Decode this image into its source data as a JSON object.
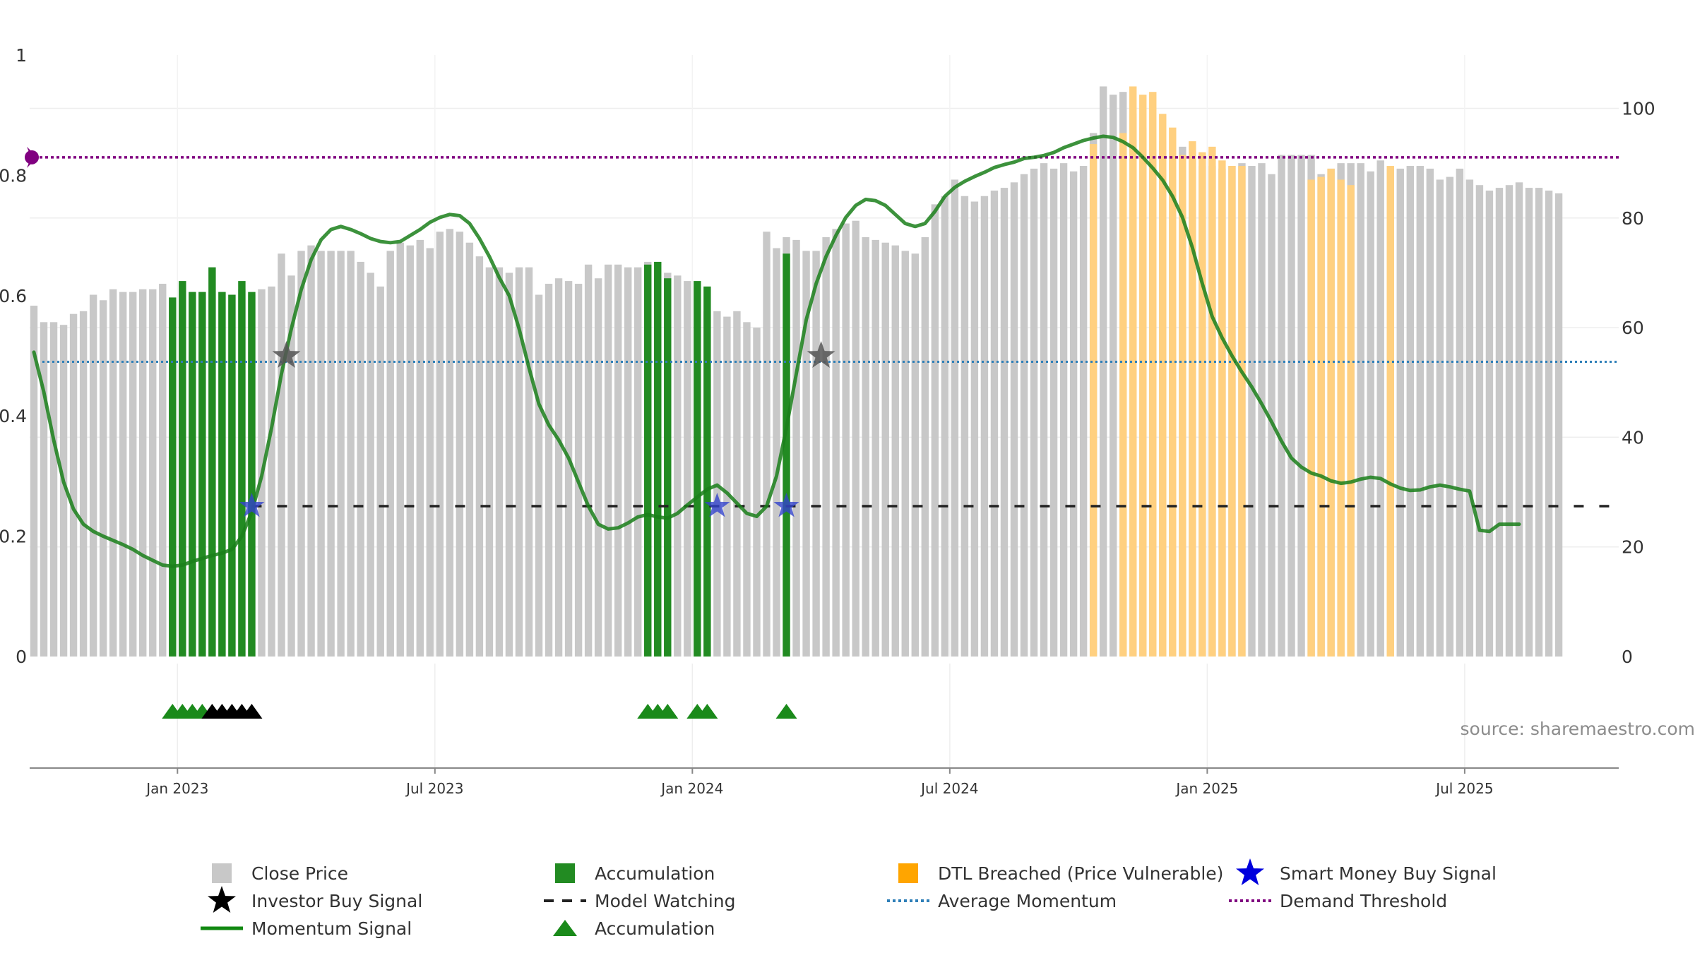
{
  "colors": {
    "close": "#c8c8c8",
    "accumulation": "#228b22",
    "dtl": "#ffd080",
    "dtl_legend": "#ffa500",
    "momentum": "#1a7f1a",
    "investor_star": "#555555",
    "smart_star": "#3344cc",
    "avg_momentum": "#2e7fb8",
    "demand": "#800080",
    "watching": "#222222",
    "tri_green": "#1a8a1a",
    "tri_black": "#000000",
    "grid": "#eeeeee"
  },
  "source": "source: sharemaestro.com",
  "chart_data": {
    "type": "bar",
    "x_ticks": [
      "Jan 2023",
      "Jul 2023",
      "Jan 2024",
      "Jul 2024",
      "Jan 2025",
      "Jul 2025"
    ],
    "x_tick_bar_index": [
      14.5,
      40.5,
      66.5,
      92.5,
      118.5,
      144.5
    ],
    "left_axis": {
      "range": [
        0,
        1
      ],
      "ticks": [
        0,
        0.2,
        0.4,
        0.6,
        0.8,
        1
      ],
      "tick_labels": [
        "0",
        "0.2",
        "0.4",
        "0.6",
        "0.8",
        "1"
      ]
    },
    "right_axis": {
      "range": [
        0,
        110
      ],
      "ticks": [
        0,
        20,
        40,
        60,
        80,
        100
      ],
      "tick_labels": [
        "0",
        "20",
        "40",
        "60",
        "80",
        "100"
      ]
    },
    "series": [
      {
        "name": "Close Price",
        "axis": "right",
        "values": [
          64,
          61,
          61,
          60.5,
          62.5,
          63,
          66,
          65,
          67,
          66.5,
          66.5,
          67,
          67,
          68,
          65,
          68,
          66.5,
          66.5,
          71,
          66.5,
          66,
          67,
          66,
          67,
          67.5,
          73.5,
          69.5,
          74,
          75,
          74,
          74,
          74,
          74,
          72,
          70,
          67.5,
          74,
          75.5,
          75,
          76,
          74.5,
          77.5,
          78,
          77.5,
          75.5,
          73,
          71,
          71,
          70,
          71,
          71,
          66,
          68,
          69,
          68.5,
          68,
          71.5,
          69,
          71.5,
          71.5,
          71,
          71,
          72,
          69,
          70,
          69.5,
          68.5,
          67.5,
          63,
          63,
          62,
          63,
          61,
          60,
          77.5,
          74.5,
          76.5,
          76,
          74,
          74,
          76.5,
          78,
          79,
          79.5,
          76.5,
          76,
          75.5,
          75,
          74,
          73.5,
          76.5,
          82.5,
          84,
          87,
          84,
          83,
          84,
          85,
          85.5,
          86.5,
          88,
          89,
          90,
          89,
          90,
          88.5,
          89.5,
          95.5,
          104,
          102.5,
          103,
          99,
          96.5,
          91.5,
          94,
          92,
          93,
          90.5,
          89.5,
          89.5,
          89,
          89.5,
          90,
          89.5,
          90,
          88,
          91.5,
          91.5,
          91.5,
          91.5,
          88,
          89,
          90,
          90,
          90,
          88.5,
          90.5,
          89,
          89,
          89.5,
          89.5,
          89,
          87,
          87.5,
          89,
          87,
          86,
          85,
          85.5,
          86,
          86.5,
          85.5,
          85.5,
          85,
          84.5
        ]
      },
      {
        "name": "Accumulation",
        "axis": "right",
        "bar_index": [
          14,
          15,
          16,
          17,
          18,
          19,
          20,
          21,
          22,
          62,
          63,
          64,
          67,
          68,
          76
        ],
        "values": [
          65.5,
          68.5,
          66.5,
          66.5,
          71,
          66.5,
          66,
          68.5,
          66.5,
          71.5,
          72,
          69,
          68.5,
          67.5,
          73.5
        ]
      },
      {
        "name": "DTL Breached (Price Vulnerable)",
        "axis": "right",
        "bar_index": [
          107,
          110,
          111,
          112,
          113,
          114,
          115,
          116,
          117,
          118,
          119,
          120,
          121,
          122,
          129,
          130,
          131,
          132,
          133,
          137
        ],
        "values": [
          93.5,
          95.5,
          104,
          102.5,
          103,
          99,
          96.5,
          91.5,
          94,
          92,
          93,
          90.5,
          89.5,
          89.5,
          87,
          87.5,
          89,
          87,
          86,
          89.5
        ]
      },
      {
        "name": "Momentum Signal",
        "axis": "left",
        "points": [
          [
            0,
            0.506
          ],
          [
            1,
            0.44
          ],
          [
            2,
            0.36
          ],
          [
            3,
            0.29
          ],
          [
            4,
            0.245
          ],
          [
            5,
            0.22
          ],
          [
            6,
            0.208
          ],
          [
            7,
            0.2
          ],
          [
            8,
            0.193
          ],
          [
            9,
            0.186
          ],
          [
            10,
            0.178
          ],
          [
            11,
            0.168
          ],
          [
            12,
            0.16
          ],
          [
            13,
            0.152
          ],
          [
            14,
            0.15
          ],
          [
            15,
            0.152
          ],
          [
            16,
            0.158
          ],
          [
            17,
            0.163
          ],
          [
            18,
            0.168
          ],
          [
            19,
            0.172
          ],
          [
            20,
            0.178
          ],
          [
            21,
            0.2
          ],
          [
            22,
            0.24
          ],
          [
            23,
            0.3
          ],
          [
            24,
            0.38
          ],
          [
            25,
            0.47
          ],
          [
            26,
            0.545
          ],
          [
            27,
            0.61
          ],
          [
            28,
            0.66
          ],
          [
            29,
            0.693
          ],
          [
            30,
            0.71
          ],
          [
            31,
            0.715
          ],
          [
            32,
            0.71
          ],
          [
            33,
            0.703
          ],
          [
            34,
            0.695
          ],
          [
            35,
            0.69
          ],
          [
            36,
            0.688
          ],
          [
            37,
            0.69
          ],
          [
            38,
            0.7
          ],
          [
            39,
            0.71
          ],
          [
            40,
            0.722
          ],
          [
            41,
            0.73
          ],
          [
            42,
            0.735
          ],
          [
            43,
            0.733
          ],
          [
            44,
            0.72
          ],
          [
            45,
            0.695
          ],
          [
            46,
            0.665
          ],
          [
            47,
            0.63
          ],
          [
            48,
            0.6
          ],
          [
            49,
            0.545
          ],
          [
            50,
            0.48
          ],
          [
            51,
            0.42
          ],
          [
            52,
            0.385
          ],
          [
            53,
            0.36
          ],
          [
            54,
            0.33
          ],
          [
            55,
            0.29
          ],
          [
            56,
            0.25
          ],
          [
            57,
            0.22
          ],
          [
            58,
            0.212
          ],
          [
            59,
            0.214
          ],
          [
            60,
            0.222
          ],
          [
            61,
            0.232
          ],
          [
            62,
            0.236
          ],
          [
            63,
            0.232
          ],
          [
            64,
            0.23
          ],
          [
            65,
            0.238
          ],
          [
            66,
            0.252
          ],
          [
            67,
            0.265
          ],
          [
            68,
            0.278
          ],
          [
            69,
            0.285
          ],
          [
            70,
            0.272
          ],
          [
            71,
            0.255
          ],
          [
            72,
            0.238
          ],
          [
            73,
            0.233
          ],
          [
            74,
            0.25
          ],
          [
            75,
            0.3
          ],
          [
            76,
            0.38
          ],
          [
            77,
            0.47
          ],
          [
            78,
            0.56
          ],
          [
            79,
            0.62
          ],
          [
            80,
            0.665
          ],
          [
            81,
            0.7
          ],
          [
            82,
            0.73
          ],
          [
            83,
            0.75
          ],
          [
            84,
            0.76
          ],
          [
            85,
            0.758
          ],
          [
            86,
            0.75
          ],
          [
            87,
            0.735
          ],
          [
            88,
            0.72
          ],
          [
            89,
            0.715
          ],
          [
            90,
            0.72
          ],
          [
            91,
            0.74
          ],
          [
            92,
            0.765
          ],
          [
            93,
            0.78
          ],
          [
            94,
            0.79
          ],
          [
            95,
            0.798
          ],
          [
            96,
            0.805
          ],
          [
            97,
            0.813
          ],
          [
            98,
            0.818
          ],
          [
            99,
            0.822
          ],
          [
            100,
            0.828
          ],
          [
            101,
            0.83
          ],
          [
            102,
            0.833
          ],
          [
            103,
            0.838
          ],
          [
            104,
            0.846
          ],
          [
            105,
            0.852
          ],
          [
            106,
            0.858
          ],
          [
            107,
            0.862
          ],
          [
            108,
            0.865
          ],
          [
            109,
            0.863
          ],
          [
            110,
            0.856
          ],
          [
            111,
            0.846
          ],
          [
            112,
            0.83
          ],
          [
            113,
            0.812
          ],
          [
            114,
            0.792
          ],
          [
            115,
            0.765
          ],
          [
            116,
            0.73
          ],
          [
            117,
            0.68
          ],
          [
            118,
            0.62
          ],
          [
            119,
            0.565
          ],
          [
            120,
            0.53
          ],
          [
            121,
            0.5
          ],
          [
            122,
            0.473
          ],
          [
            123,
            0.448
          ],
          [
            124,
            0.42
          ],
          [
            125,
            0.39
          ],
          [
            126,
            0.358
          ],
          [
            127,
            0.33
          ],
          [
            128,
            0.315
          ],
          [
            129,
            0.305
          ],
          [
            130,
            0.3
          ],
          [
            131,
            0.292
          ],
          [
            132,
            0.288
          ],
          [
            133,
            0.29
          ],
          [
            134,
            0.295
          ],
          [
            135,
            0.298
          ],
          [
            136,
            0.296
          ],
          [
            137,
            0.287
          ],
          [
            138,
            0.28
          ],
          [
            139,
            0.276
          ],
          [
            140,
            0.277
          ],
          [
            141,
            0.282
          ],
          [
            142,
            0.285
          ],
          [
            143,
            0.282
          ],
          [
            144,
            0.278
          ],
          [
            145,
            0.275
          ],
          [
            146,
            0.21
          ],
          [
            147,
            0.208
          ],
          [
            148,
            0.22
          ],
          [
            149,
            0.22
          ],
          [
            150,
            0.22
          ]
        ]
      },
      {
        "name": "Average Momentum",
        "axis": "left",
        "value": 0.49
      },
      {
        "name": "Demand Threshold",
        "axis": "left",
        "value": 0.83
      },
      {
        "name": "Model Watching",
        "axis": "left",
        "value": 0.25,
        "from_bar_index": 22
      },
      {
        "name": "Investor Buy Signal",
        "axis": "left",
        "points": [
          [
            25.5,
            0.5
          ],
          [
            79.5,
            0.5
          ]
        ]
      },
      {
        "name": "Smart Money Buy Signal",
        "axis": "left",
        "points": [
          [
            22,
            0.25
          ],
          [
            69,
            0.25
          ],
          [
            76,
            0.25
          ]
        ]
      },
      {
        "name": "Accumulation markers",
        "green_bar_index": [
          14,
          15,
          16,
          17,
          62,
          63,
          64,
          67,
          68,
          76
        ],
        "black_bar_index": [
          18,
          19,
          20,
          21,
          22
        ]
      }
    ],
    "legend": [
      {
        "label": "Close Price",
        "symbol": "square-gray"
      },
      {
        "label": "Accumulation",
        "symbol": "square-green"
      },
      {
        "label": "DTL Breached (Price Vulnerable)",
        "symbol": "square-orange"
      },
      {
        "label": "Smart Money Buy Signal",
        "symbol": "star-blue"
      },
      {
        "label": "Investor Buy Signal",
        "symbol": "star-black"
      },
      {
        "label": "Model Watching",
        "symbol": "dash-black"
      },
      {
        "label": "Average Momentum",
        "symbol": "dot-blue"
      },
      {
        "label": "Demand Threshold",
        "symbol": "dot-purple"
      },
      {
        "label": "Momentum Signal",
        "symbol": "line-green"
      },
      {
        "label": "Accumulation",
        "symbol": "triangle-green"
      }
    ]
  }
}
